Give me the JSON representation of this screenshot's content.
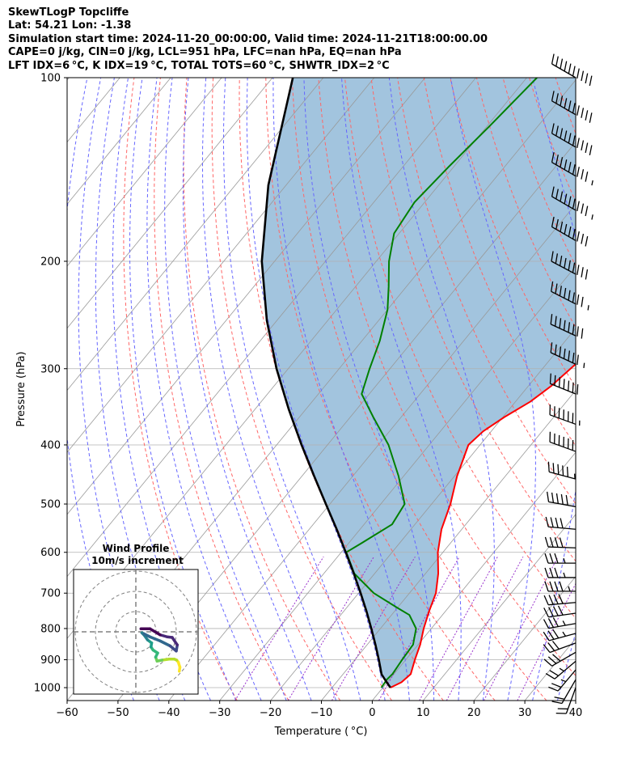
{
  "header": {
    "line1": "SkewTLogP Topcliffe",
    "line2": "Lat: 54.21   Lon: -1.38",
    "line3": "Simulation start time: 2024-11-20_00:00:00, Valid time: 2024-11-21T18:00:00.00",
    "line4": "CAPE=0 j/kg, CIN=0 j/kg, LCL=951 hPa, LFC=nan hPa, EQ=nan hPa",
    "line5": "LFT IDX=6 °C, K IDX=19 °C, TOTAL TOTS=60 °C, SHWTR_IDX=2 °C"
  },
  "colors": {
    "temperature": "#ff0000",
    "dewpoint": "#008000",
    "parcel": "#000000",
    "shade": "#a2c4de",
    "dry_adiabat": "#ff6666",
    "moist_adiabat": "#6666ff",
    "isotherm": "#999999",
    "mixing_ratio": "#9932cc"
  },
  "chart_data": {
    "type": "line",
    "title": "",
    "xlabel": "Temperature ( °C)",
    "ylabel": "Pressure (hPa)",
    "xlim": [
      -60,
      40
    ],
    "ylim": [
      1050,
      100
    ],
    "y_scale": "log",
    "grid": true,
    "x_ticks": [
      -60,
      -50,
      -40,
      -30,
      -20,
      -10,
      0,
      10,
      20,
      30,
      40
    ],
    "x_tick_labels": [
      "−60",
      "−50",
      "−40",
      "−30",
      "−20",
      "−10",
      "0",
      "10",
      "20",
      "30",
      "40"
    ],
    "y_ticks": [
      1000,
      900,
      800,
      700,
      600,
      500,
      400,
      300,
      200,
      100
    ],
    "y_tick_labels": [
      "1000",
      "900",
      "800",
      "700",
      "600",
      "500",
      "400",
      "300",
      "200",
      "100"
    ],
    "series": [
      {
        "key": "temperature",
        "pressure": [
          1000,
          980,
          950,
          900,
          850,
          800,
          750,
          700,
          650,
          600,
          550,
          500,
          450,
          400,
          380,
          360,
          340,
          320,
          300,
          280,
          260,
          240,
          220,
          200,
          180,
          160,
          140,
          120,
          100
        ],
        "values": [
          1.5,
          2.8,
          3.3,
          1.8,
          0.4,
          -1.5,
          -3.2,
          -4.8,
          -7.5,
          -11.0,
          -14.0,
          -16.3,
          -19.5,
          -22.3,
          -21.6,
          -19.7,
          -17.1,
          -15.5,
          -14.5,
          -13.5,
          -12.5,
          -11.0,
          -9.5,
          -6.5,
          -4.5,
          -3.0,
          -2.0,
          -1.5,
          0.0
        ]
      },
      {
        "key": "dewpoint",
        "pressure": [
          1000,
          970,
          950,
          900,
          850,
          800,
          760,
          740,
          700,
          650,
          600,
          580,
          540,
          500,
          450,
          400,
          360,
          330,
          300,
          270,
          240,
          220,
          200,
          180,
          160,
          140,
          120,
          100
        ],
        "values": [
          -0.3,
          -0.5,
          -0.3,
          -0.7,
          -1.0,
          -3.0,
          -6.5,
          -10.0,
          -17.0,
          -24.0,
          -29.0,
          -27.5,
          -24.5,
          -25.3,
          -31.0,
          -38.0,
          -45.5,
          -51.5,
          -54.0,
          -56.5,
          -60.0,
          -63.5,
          -67.5,
          -71.0,
          -72.0,
          -71.0,
          -69.5,
          -68.0
        ]
      },
      {
        "key": "parcel",
        "pressure": [
          1000,
          980,
          951,
          900,
          850,
          800,
          750,
          700,
          650,
          600,
          550,
          500,
          450,
          400,
          350,
          300,
          250,
          200,
          150,
          100
        ],
        "values": [
          1.5,
          -0.1,
          -2.4,
          -5.3,
          -8.4,
          -11.8,
          -15.5,
          -19.6,
          -24.1,
          -29.1,
          -34.6,
          -40.8,
          -47.6,
          -55.1,
          -63.3,
          -72.3,
          -82.0,
          -92.5,
          -103.5,
          -116.0
        ]
      }
    ],
    "wind_barbs": {
      "pressure": [
        1000,
        970,
        935,
        905,
        875,
        845,
        815,
        785,
        755,
        725,
        695,
        660,
        625,
        590,
        550,
        505,
        455,
        410,
        370,
        330,
        295,
        265,
        235,
        210,
        185,
        165,
        145,
        130,
        115,
        100
      ],
      "speed_kt": [
        20,
        22,
        25,
        25,
        30,
        30,
        35,
        35,
        40,
        40,
        45,
        35,
        35,
        40,
        40,
        50,
        55,
        60,
        65,
        70,
        75,
        80,
        85,
        90,
        90,
        95,
        95,
        100,
        100,
        100
      ],
      "direction_deg": [
        200,
        210,
        220,
        230,
        240,
        250,
        255,
        260,
        262,
        265,
        270,
        270,
        270,
        272,
        275,
        280,
        285,
        290,
        290,
        292,
        295,
        295,
        297,
        298,
        300,
        300,
        300,
        300,
        300,
        300
      ]
    },
    "hodograph": {
      "title_line1": "Wind Profile",
      "title_line2": "10m/s increment",
      "rings_ms": [
        10,
        20,
        30
      ],
      "u_ms": [
        21.5,
        21.8,
        21.0,
        20.2,
        19.0,
        16.5,
        13.0,
        10.5,
        9.8,
        10.8,
        8.5,
        7.5,
        7.8,
        5.8,
        4.0,
        3.0,
        4.0,
        7.0,
        12.0,
        17.0,
        20.0,
        20.5,
        18.0,
        15.5,
        12.0,
        7.0,
        2.5
      ],
      "v_ms": [
        -19.5,
        -17.5,
        -15.0,
        -14.0,
        -13.5,
        -13.5,
        -14.0,
        -14.5,
        -12.5,
        -10.5,
        -9.0,
        -7.5,
        -5.5,
        -4.0,
        -1.5,
        -0.5,
        -1.0,
        -2.5,
        -4.5,
        -7.0,
        -9.5,
        -6.5,
        -2.8,
        -2.5,
        -1.5,
        1.5,
        1.5
      ]
    }
  }
}
